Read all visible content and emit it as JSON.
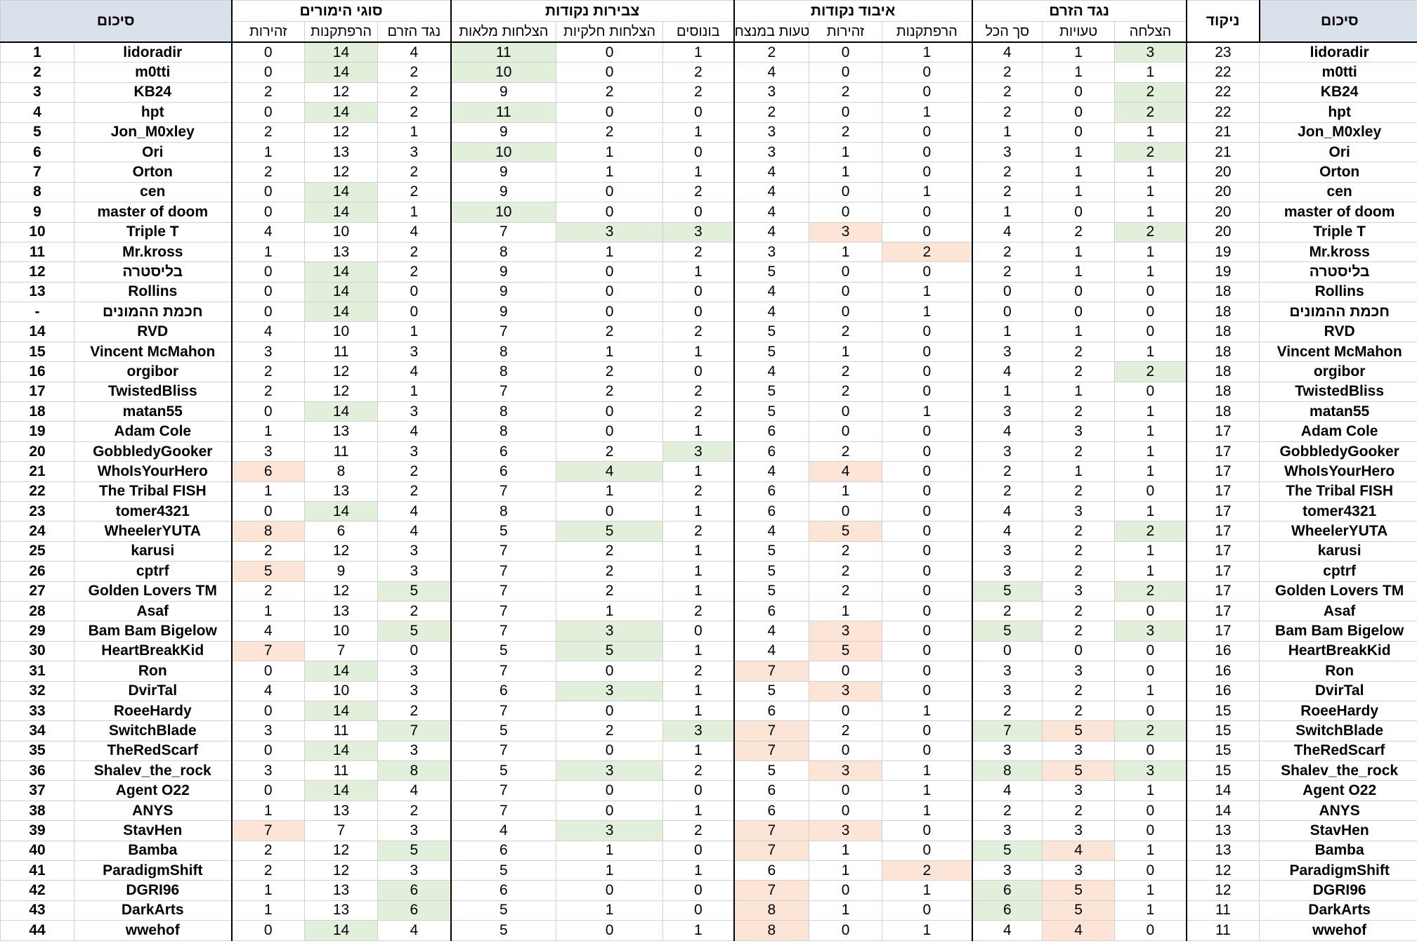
{
  "headers": {
    "left_summary": "סיכום",
    "score": "ניקוד",
    "groups": {
      "against_flow": "נגד הזרם",
      "point_loss": "איבוד נקודות",
      "point_accumulation": "צבירות נקודות",
      "bet_types": "סוגי הימורים",
      "right_summary": "סיכום"
    },
    "sub": {
      "success": "הצלחה",
      "mistakes": "טעויות",
      "total": "סך הכל",
      "recklessness": "הרפתקנות",
      "caution": "זהירות",
      "winner_mistakes": "טעות במנצח",
      "bonuses": "בונוסים",
      "partial": "הצלחות חלקיות",
      "full": "הצלחות מלאות",
      "against_flow": "נגד הזרם",
      "recklessness2": "הרפתקנות",
      "caution2": "זהירות"
    }
  },
  "rows": [
    {
      "rank": "1",
      "name": "lidoradir",
      "score": "23",
      "af_success": "3",
      "af_mistakes": "1",
      "af_total": "4",
      "pl_reckless": "1",
      "pl_caution": "0",
      "pl_winner": "2",
      "pa_bonus": "1",
      "pa_partial": "0",
      "pa_full": "11",
      "bt_against": "4",
      "bt_reckless": "14",
      "bt_caution": "0"
    },
    {
      "rank": "2",
      "name": "m0tti",
      "score": "22",
      "af_success": "1",
      "af_mistakes": "1",
      "af_total": "2",
      "pl_reckless": "0",
      "pl_caution": "0",
      "pl_winner": "4",
      "pa_bonus": "2",
      "pa_partial": "0",
      "pa_full": "10",
      "bt_against": "2",
      "bt_reckless": "14",
      "bt_caution": "0"
    },
    {
      "rank": "3",
      "name": "KB24",
      "score": "22",
      "af_success": "2",
      "af_mistakes": "0",
      "af_total": "2",
      "pl_reckless": "0",
      "pl_caution": "2",
      "pl_winner": "3",
      "pa_bonus": "2",
      "pa_partial": "2",
      "pa_full": "9",
      "bt_against": "2",
      "bt_reckless": "12",
      "bt_caution": "2"
    },
    {
      "rank": "4",
      "name": "hpt",
      "score": "22",
      "af_success": "2",
      "af_mistakes": "0",
      "af_total": "2",
      "pl_reckless": "1",
      "pl_caution": "0",
      "pl_winner": "2",
      "pa_bonus": "0",
      "pa_partial": "0",
      "pa_full": "11",
      "bt_against": "2",
      "bt_reckless": "14",
      "bt_caution": "0"
    },
    {
      "rank": "5",
      "name": "Jon_M0xley",
      "score": "21",
      "af_success": "1",
      "af_mistakes": "0",
      "af_total": "1",
      "pl_reckless": "0",
      "pl_caution": "2",
      "pl_winner": "3",
      "pa_bonus": "1",
      "pa_partial": "2",
      "pa_full": "9",
      "bt_against": "1",
      "bt_reckless": "12",
      "bt_caution": "2"
    },
    {
      "rank": "6",
      "name": "Ori",
      "score": "21",
      "af_success": "2",
      "af_mistakes": "1",
      "af_total": "3",
      "pl_reckless": "0",
      "pl_caution": "1",
      "pl_winner": "3",
      "pa_bonus": "0",
      "pa_partial": "1",
      "pa_full": "10",
      "bt_against": "3",
      "bt_reckless": "13",
      "bt_caution": "1"
    },
    {
      "rank": "7",
      "name": "Orton",
      "score": "20",
      "af_success": "1",
      "af_mistakes": "1",
      "af_total": "2",
      "pl_reckless": "0",
      "pl_caution": "1",
      "pl_winner": "4",
      "pa_bonus": "1",
      "pa_partial": "1",
      "pa_full": "9",
      "bt_against": "2",
      "bt_reckless": "12",
      "bt_caution": "2"
    },
    {
      "rank": "8",
      "name": "cen",
      "score": "20",
      "af_success": "1",
      "af_mistakes": "1",
      "af_total": "2",
      "pl_reckless": "1",
      "pl_caution": "0",
      "pl_winner": "4",
      "pa_bonus": "2",
      "pa_partial": "0",
      "pa_full": "9",
      "bt_against": "2",
      "bt_reckless": "14",
      "bt_caution": "0"
    },
    {
      "rank": "9",
      "name": "master of doom",
      "score": "20",
      "af_success": "1",
      "af_mistakes": "0",
      "af_total": "1",
      "pl_reckless": "0",
      "pl_caution": "0",
      "pl_winner": "4",
      "pa_bonus": "0",
      "pa_partial": "0",
      "pa_full": "10",
      "bt_against": "1",
      "bt_reckless": "14",
      "bt_caution": "0"
    },
    {
      "rank": "10",
      "name": "Triple T",
      "score": "20",
      "af_success": "2",
      "af_mistakes": "2",
      "af_total": "4",
      "pl_reckless": "0",
      "pl_caution": "3",
      "pl_winner": "4",
      "pa_bonus": "3",
      "pa_partial": "3",
      "pa_full": "7",
      "bt_against": "4",
      "bt_reckless": "10",
      "bt_caution": "4"
    },
    {
      "rank": "11",
      "name": "Mr.kross",
      "score": "19",
      "af_success": "1",
      "af_mistakes": "1",
      "af_total": "2",
      "pl_reckless": "2",
      "pl_caution": "1",
      "pl_winner": "3",
      "pa_bonus": "2",
      "pa_partial": "1",
      "pa_full": "8",
      "bt_against": "2",
      "bt_reckless": "13",
      "bt_caution": "1"
    },
    {
      "rank": "12",
      "name": "בליסטרה",
      "score": "19",
      "af_success": "1",
      "af_mistakes": "1",
      "af_total": "2",
      "pl_reckless": "0",
      "pl_caution": "0",
      "pl_winner": "5",
      "pa_bonus": "1",
      "pa_partial": "0",
      "pa_full": "9",
      "bt_against": "2",
      "bt_reckless": "14",
      "bt_caution": "0"
    },
    {
      "rank": "13",
      "name": "Rollins",
      "score": "18",
      "af_success": "0",
      "af_mistakes": "0",
      "af_total": "0",
      "pl_reckless": "1",
      "pl_caution": "0",
      "pl_winner": "4",
      "pa_bonus": "0",
      "pa_partial": "0",
      "pa_full": "9",
      "bt_against": "0",
      "bt_reckless": "14",
      "bt_caution": "0"
    },
    {
      "rank": "-",
      "name": "חכמת ההמונים",
      "score": "18",
      "af_success": "0",
      "af_mistakes": "0",
      "af_total": "0",
      "pl_reckless": "1",
      "pl_caution": "0",
      "pl_winner": "4",
      "pa_bonus": "0",
      "pa_partial": "0",
      "pa_full": "9",
      "bt_against": "0",
      "bt_reckless": "14",
      "bt_caution": "0",
      "crowd": true
    },
    {
      "rank": "14",
      "name": "RVD",
      "score": "18",
      "af_success": "0",
      "af_mistakes": "1",
      "af_total": "1",
      "pl_reckless": "0",
      "pl_caution": "2",
      "pl_winner": "5",
      "pa_bonus": "2",
      "pa_partial": "2",
      "pa_full": "7",
      "bt_against": "1",
      "bt_reckless": "10",
      "bt_caution": "4"
    },
    {
      "rank": "15",
      "name": "Vincent McMahon",
      "score": "18",
      "af_success": "1",
      "af_mistakes": "2",
      "af_total": "3",
      "pl_reckless": "0",
      "pl_caution": "1",
      "pl_winner": "5",
      "pa_bonus": "1",
      "pa_partial": "1",
      "pa_full": "8",
      "bt_against": "3",
      "bt_reckless": "11",
      "bt_caution": "3"
    },
    {
      "rank": "16",
      "name": "orgibor",
      "score": "18",
      "af_success": "2",
      "af_mistakes": "2",
      "af_total": "4",
      "pl_reckless": "0",
      "pl_caution": "2",
      "pl_winner": "4",
      "pa_bonus": "0",
      "pa_partial": "2",
      "pa_full": "8",
      "bt_against": "4",
      "bt_reckless": "12",
      "bt_caution": "2"
    },
    {
      "rank": "17",
      "name": "TwistedBliss",
      "score": "18",
      "af_success": "0",
      "af_mistakes": "1",
      "af_total": "1",
      "pl_reckless": "0",
      "pl_caution": "2",
      "pl_winner": "5",
      "pa_bonus": "2",
      "pa_partial": "2",
      "pa_full": "7",
      "bt_against": "1",
      "bt_reckless": "12",
      "bt_caution": "2"
    },
    {
      "rank": "18",
      "name": "matan55",
      "score": "18",
      "af_success": "1",
      "af_mistakes": "2",
      "af_total": "3",
      "pl_reckless": "1",
      "pl_caution": "0",
      "pl_winner": "5",
      "pa_bonus": "2",
      "pa_partial": "0",
      "pa_full": "8",
      "bt_against": "3",
      "bt_reckless": "14",
      "bt_caution": "0"
    },
    {
      "rank": "19",
      "name": "Adam Cole",
      "score": "17",
      "af_success": "1",
      "af_mistakes": "3",
      "af_total": "4",
      "pl_reckless": "0",
      "pl_caution": "0",
      "pl_winner": "6",
      "pa_bonus": "1",
      "pa_partial": "0",
      "pa_full": "8",
      "bt_against": "4",
      "bt_reckless": "13",
      "bt_caution": "1"
    },
    {
      "rank": "20",
      "name": "GobbledyGooker",
      "score": "17",
      "af_success": "1",
      "af_mistakes": "2",
      "af_total": "3",
      "pl_reckless": "0",
      "pl_caution": "2",
      "pl_winner": "6",
      "pa_bonus": "3",
      "pa_partial": "2",
      "pa_full": "6",
      "bt_against": "3",
      "bt_reckless": "11",
      "bt_caution": "3"
    },
    {
      "rank": "21",
      "name": "WhoIsYourHero",
      "score": "17",
      "af_success": "1",
      "af_mistakes": "1",
      "af_total": "2",
      "pl_reckless": "0",
      "pl_caution": "4",
      "pl_winner": "4",
      "pa_bonus": "1",
      "pa_partial": "4",
      "pa_full": "6",
      "bt_against": "2",
      "bt_reckless": "8",
      "bt_caution": "6"
    },
    {
      "rank": "22",
      "name": "The Tribal FISH",
      "score": "17",
      "af_success": "0",
      "af_mistakes": "2",
      "af_total": "2",
      "pl_reckless": "0",
      "pl_caution": "1",
      "pl_winner": "6",
      "pa_bonus": "2",
      "pa_partial": "1",
      "pa_full": "7",
      "bt_against": "2",
      "bt_reckless": "13",
      "bt_caution": "1"
    },
    {
      "rank": "23",
      "name": "tomer4321",
      "score": "17",
      "af_success": "1",
      "af_mistakes": "3",
      "af_total": "4",
      "pl_reckless": "0",
      "pl_caution": "0",
      "pl_winner": "6",
      "pa_bonus": "1",
      "pa_partial": "0",
      "pa_full": "8",
      "bt_against": "4",
      "bt_reckless": "14",
      "bt_caution": "0"
    },
    {
      "rank": "24",
      "name": "WheelerYUTA",
      "score": "17",
      "af_success": "2",
      "af_mistakes": "2",
      "af_total": "4",
      "pl_reckless": "0",
      "pl_caution": "5",
      "pl_winner": "4",
      "pa_bonus": "2",
      "pa_partial": "5",
      "pa_full": "5",
      "bt_against": "4",
      "bt_reckless": "6",
      "bt_caution": "8"
    },
    {
      "rank": "25",
      "name": "karusi",
      "score": "17",
      "af_success": "1",
      "af_mistakes": "2",
      "af_total": "3",
      "pl_reckless": "0",
      "pl_caution": "2",
      "pl_winner": "5",
      "pa_bonus": "1",
      "pa_partial": "2",
      "pa_full": "7",
      "bt_against": "3",
      "bt_reckless": "12",
      "bt_caution": "2"
    },
    {
      "rank": "26",
      "name": "cptrf",
      "score": "17",
      "af_success": "1",
      "af_mistakes": "2",
      "af_total": "3",
      "pl_reckless": "0",
      "pl_caution": "2",
      "pl_winner": "5",
      "pa_bonus": "1",
      "pa_partial": "2",
      "pa_full": "7",
      "bt_against": "3",
      "bt_reckless": "9",
      "bt_caution": "5"
    },
    {
      "rank": "27",
      "name": "Golden Lovers TM",
      "score": "17",
      "af_success": "2",
      "af_mistakes": "3",
      "af_total": "5",
      "pl_reckless": "0",
      "pl_caution": "2",
      "pl_winner": "5",
      "pa_bonus": "1",
      "pa_partial": "2",
      "pa_full": "7",
      "bt_against": "5",
      "bt_reckless": "12",
      "bt_caution": "2"
    },
    {
      "rank": "28",
      "name": "Asaf",
      "score": "17",
      "af_success": "0",
      "af_mistakes": "2",
      "af_total": "2",
      "pl_reckless": "0",
      "pl_caution": "1",
      "pl_winner": "6",
      "pa_bonus": "2",
      "pa_partial": "1",
      "pa_full": "7",
      "bt_against": "2",
      "bt_reckless": "13",
      "bt_caution": "1"
    },
    {
      "rank": "29",
      "name": "Bam Bam Bigelow",
      "score": "17",
      "af_success": "3",
      "af_mistakes": "2",
      "af_total": "5",
      "pl_reckless": "0",
      "pl_caution": "3",
      "pl_winner": "4",
      "pa_bonus": "0",
      "pa_partial": "3",
      "pa_full": "7",
      "bt_against": "5",
      "bt_reckless": "10",
      "bt_caution": "4"
    },
    {
      "rank": "30",
      "name": "HeartBreakKid",
      "score": "16",
      "af_success": "0",
      "af_mistakes": "0",
      "af_total": "0",
      "pl_reckless": "0",
      "pl_caution": "5",
      "pl_winner": "4",
      "pa_bonus": "1",
      "pa_partial": "5",
      "pa_full": "5",
      "bt_against": "0",
      "bt_reckless": "7",
      "bt_caution": "7"
    },
    {
      "rank": "31",
      "name": "Ron",
      "score": "16",
      "af_success": "0",
      "af_mistakes": "3",
      "af_total": "3",
      "pl_reckless": "0",
      "pl_caution": "0",
      "pl_winner": "7",
      "pa_bonus": "2",
      "pa_partial": "0",
      "pa_full": "7",
      "bt_against": "3",
      "bt_reckless": "14",
      "bt_caution": "0"
    },
    {
      "rank": "32",
      "name": "DvirTal",
      "score": "16",
      "af_success": "1",
      "af_mistakes": "2",
      "af_total": "3",
      "pl_reckless": "0",
      "pl_caution": "3",
      "pl_winner": "5",
      "pa_bonus": "1",
      "pa_partial": "3",
      "pa_full": "6",
      "bt_against": "3",
      "bt_reckless": "10",
      "bt_caution": "4"
    },
    {
      "rank": "33",
      "name": "RoeeHardy",
      "score": "15",
      "af_success": "0",
      "af_mistakes": "2",
      "af_total": "2",
      "pl_reckless": "1",
      "pl_caution": "0",
      "pl_winner": "6",
      "pa_bonus": "1",
      "pa_partial": "0",
      "pa_full": "7",
      "bt_against": "2",
      "bt_reckless": "14",
      "bt_caution": "0"
    },
    {
      "rank": "34",
      "name": "SwitchBlade",
      "score": "15",
      "af_success": "2",
      "af_mistakes": "5",
      "af_total": "7",
      "pl_reckless": "0",
      "pl_caution": "2",
      "pl_winner": "7",
      "pa_bonus": "3",
      "pa_partial": "2",
      "pa_full": "5",
      "bt_against": "7",
      "bt_reckless": "11",
      "bt_caution": "3"
    },
    {
      "rank": "35",
      "name": "TheRedScarf",
      "score": "15",
      "af_success": "0",
      "af_mistakes": "3",
      "af_total": "3",
      "pl_reckless": "0",
      "pl_caution": "0",
      "pl_winner": "7",
      "pa_bonus": "1",
      "pa_partial": "0",
      "pa_full": "7",
      "bt_against": "3",
      "bt_reckless": "14",
      "bt_caution": "0"
    },
    {
      "rank": "36",
      "name": "Shalev_the_rock",
      "score": "15",
      "af_success": "3",
      "af_mistakes": "5",
      "af_total": "8",
      "pl_reckless": "1",
      "pl_caution": "3",
      "pl_winner": "5",
      "pa_bonus": "2",
      "pa_partial": "3",
      "pa_full": "5",
      "bt_against": "8",
      "bt_reckless": "11",
      "bt_caution": "3"
    },
    {
      "rank": "37",
      "name": "Agent O22",
      "score": "14",
      "af_success": "1",
      "af_mistakes": "3",
      "af_total": "4",
      "pl_reckless": "1",
      "pl_caution": "0",
      "pl_winner": "6",
      "pa_bonus": "0",
      "pa_partial": "0",
      "pa_full": "7",
      "bt_against": "4",
      "bt_reckless": "14",
      "bt_caution": "0"
    },
    {
      "rank": "38",
      "name": "ANYS",
      "score": "14",
      "af_success": "0",
      "af_mistakes": "2",
      "af_total": "2",
      "pl_reckless": "1",
      "pl_caution": "0",
      "pl_winner": "6",
      "pa_bonus": "1",
      "pa_partial": "0",
      "pa_full": "7",
      "bt_against": "2",
      "bt_reckless": "13",
      "bt_caution": "1"
    },
    {
      "rank": "39",
      "name": "StavHen",
      "score": "13",
      "af_success": "0",
      "af_mistakes": "3",
      "af_total": "3",
      "pl_reckless": "0",
      "pl_caution": "3",
      "pl_winner": "7",
      "pa_bonus": "2",
      "pa_partial": "3",
      "pa_full": "4",
      "bt_against": "3",
      "bt_reckless": "7",
      "bt_caution": "7"
    },
    {
      "rank": "40",
      "name": "Bamba",
      "score": "13",
      "af_success": "1",
      "af_mistakes": "4",
      "af_total": "5",
      "pl_reckless": "0",
      "pl_caution": "1",
      "pl_winner": "7",
      "pa_bonus": "0",
      "pa_partial": "1",
      "pa_full": "6",
      "bt_against": "5",
      "bt_reckless": "12",
      "bt_caution": "2"
    },
    {
      "rank": "41",
      "name": "ParadigmShift",
      "score": "12",
      "af_success": "0",
      "af_mistakes": "3",
      "af_total": "3",
      "pl_reckless": "2",
      "pl_caution": "1",
      "pl_winner": "6",
      "pa_bonus": "1",
      "pa_partial": "1",
      "pa_full": "5",
      "bt_against": "3",
      "bt_reckless": "12",
      "bt_caution": "2"
    },
    {
      "rank": "42",
      "name": "DGRI96",
      "score": "12",
      "af_success": "1",
      "af_mistakes": "5",
      "af_total": "6",
      "pl_reckless": "1",
      "pl_caution": "0",
      "pl_winner": "7",
      "pa_bonus": "0",
      "pa_partial": "0",
      "pa_full": "6",
      "bt_against": "6",
      "bt_reckless": "13",
      "bt_caution": "1"
    },
    {
      "rank": "43",
      "name": "DarkArts",
      "score": "11",
      "af_success": "1",
      "af_mistakes": "5",
      "af_total": "6",
      "pl_reckless": "0",
      "pl_caution": "1",
      "pl_winner": "8",
      "pa_bonus": "0",
      "pa_partial": "1",
      "pa_full": "5",
      "bt_against": "6",
      "bt_reckless": "13",
      "bt_caution": "1"
    },
    {
      "rank": "44",
      "name": "wwehof",
      "score": "11",
      "af_success": "0",
      "af_mistakes": "4",
      "af_total": "4",
      "pl_reckless": "1",
      "pl_caution": "0",
      "pl_winner": "8",
      "pa_bonus": "1",
      "pa_partial": "0",
      "pa_full": "5",
      "bt_against": "4",
      "bt_reckless": "14",
      "bt_caution": "0"
    }
  ],
  "highlights": {
    "green": "#e2efda",
    "pink": "#fce4d6",
    "crowd_red": "#ff0000",
    "header_blue": "#d9e1ea",
    "cells": {
      "af_success": {
        "g": [
          "1",
          "3",
          "4",
          "6",
          "10",
          "16",
          "24",
          "27",
          "29",
          "34",
          "36"
        ]
      },
      "af_mistakes": {
        "p": [
          "34",
          "36",
          "40",
          "42",
          "43",
          "44"
        ]
      },
      "af_total": {
        "g": [
          "27",
          "29",
          "34",
          "36",
          "40",
          "42",
          "43"
        ]
      },
      "pl_reckless": {
        "p": [
          "11",
          "41"
        ]
      },
      "pl_caution": {
        "p": [
          "10",
          "21",
          "24",
          "29",
          "30",
          "32",
          "36",
          "39"
        ]
      },
      "pl_winner": {
        "p": [
          "31",
          "34",
          "35",
          "39",
          "40",
          "42",
          "43",
          "44"
        ]
      },
      "pa_bonus": {
        "g": [
          "10",
          "20",
          "34"
        ]
      },
      "pa_partial": {
        "g": [
          "10",
          "21",
          "24",
          "29",
          "30",
          "32",
          "36",
          "39"
        ]
      },
      "pa_full": {
        "g": [
          "1",
          "2",
          "4",
          "6",
          "9"
        ]
      },
      "bt_against": {
        "g": [
          "27",
          "29",
          "34",
          "36",
          "40",
          "42",
          "43"
        ]
      },
      "bt_reckless": {
        "g": [
          "1",
          "2",
          "4",
          "8",
          "9",
          "12",
          "13",
          "-",
          "18",
          "23",
          "31",
          "33",
          "35",
          "37",
          "44"
        ]
      },
      "bt_caution": {
        "p": [
          "21",
          "24",
          "26",
          "30",
          "39"
        ]
      }
    }
  }
}
